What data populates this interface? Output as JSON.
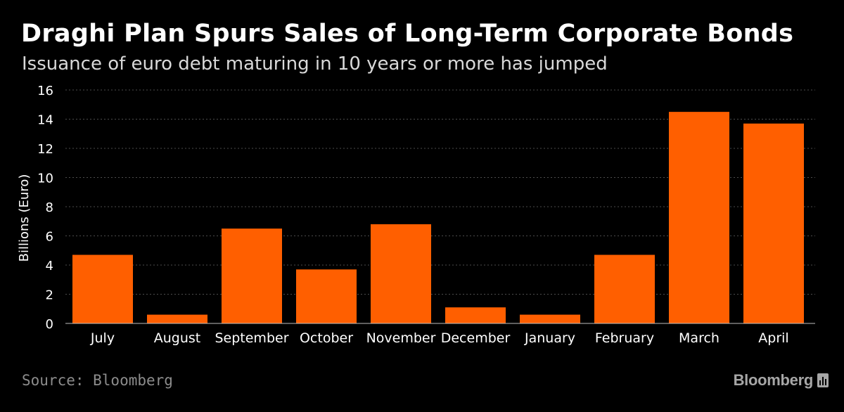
{
  "title": "Draghi Plan Spurs Sales of Long-Term Corporate Bonds",
  "subtitle": "Issuance of euro debt maturing in 10 years or more has jumped",
  "source": "Source: Bloomberg",
  "brand": "Bloomberg",
  "colors": {
    "background": "#000000",
    "bar": "#ff5f00",
    "grid": "#4d4d4d",
    "text": "#ffffff",
    "muted": "#8c8c8c"
  },
  "chart_data": {
    "type": "bar",
    "categories": [
      "July",
      "August",
      "September",
      "October",
      "November",
      "December",
      "January",
      "February",
      "March",
      "April"
    ],
    "values": [
      4.7,
      0.6,
      6.5,
      3.7,
      6.8,
      1.1,
      0.6,
      4.7,
      14.5,
      13.7
    ],
    "ylabel": "Billions (Euro)",
    "xlabel": "",
    "ylim": [
      0,
      16
    ],
    "yticks": [
      0,
      2,
      4,
      6,
      8,
      10,
      12,
      14,
      16
    ],
    "grid": true
  }
}
